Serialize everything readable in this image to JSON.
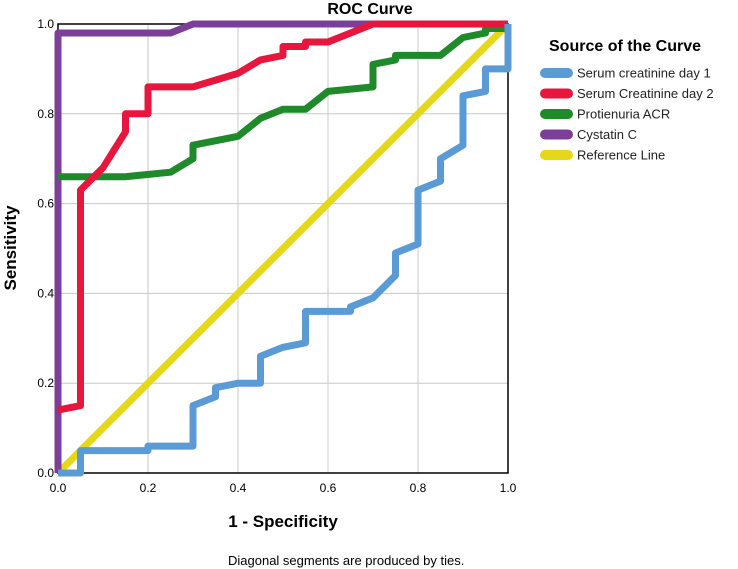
{
  "chart_data": {
    "type": "line",
    "title": "ROC Curve",
    "xlabel": "1 - Specificity",
    "ylabel": "Sensitivity",
    "xlim": [
      0,
      1
    ],
    "ylim": [
      0,
      1
    ],
    "x_ticks": [
      "0.0",
      "0.2",
      "0.4",
      "0.6",
      "0.8",
      "1.0"
    ],
    "y_ticks": [
      "0.0",
      "0.2",
      "0.4",
      "0.6",
      "0.8",
      "1.0"
    ],
    "grid": true,
    "legend_title": "Source of the Curve",
    "legend_position": "right",
    "footnote": "Diagonal segments are produced by ties.",
    "series": [
      {
        "name": "Serum creatinine day 1",
        "color": "#5b9bd5",
        "points": [
          [
            0,
            0
          ],
          [
            0.05,
            0
          ],
          [
            0.05,
            0.05
          ],
          [
            0.2,
            0.05
          ],
          [
            0.2,
            0.06
          ],
          [
            0.3,
            0.06
          ],
          [
            0.3,
            0.15
          ],
          [
            0.35,
            0.17
          ],
          [
            0.35,
            0.19
          ],
          [
            0.4,
            0.2
          ],
          [
            0.45,
            0.2
          ],
          [
            0.45,
            0.26
          ],
          [
            0.5,
            0.28
          ],
          [
            0.55,
            0.29
          ],
          [
            0.55,
            0.36
          ],
          [
            0.65,
            0.36
          ],
          [
            0.65,
            0.37
          ],
          [
            0.7,
            0.39
          ],
          [
            0.75,
            0.44
          ],
          [
            0.75,
            0.49
          ],
          [
            0.8,
            0.51
          ],
          [
            0.8,
            0.63
          ],
          [
            0.85,
            0.65
          ],
          [
            0.85,
            0.7
          ],
          [
            0.9,
            0.73
          ],
          [
            0.9,
            0.84
          ],
          [
            0.95,
            0.85
          ],
          [
            0.95,
            0.9
          ],
          [
            1,
            0.9
          ],
          [
            1,
            1
          ]
        ]
      },
      {
        "name": "Serum Creatinine day 2",
        "color": "#e8153c",
        "points": [
          [
            0,
            0.14
          ],
          [
            0.05,
            0.15
          ],
          [
            0.05,
            0.63
          ],
          [
            0.1,
            0.68
          ],
          [
            0.15,
            0.76
          ],
          [
            0.15,
            0.8
          ],
          [
            0.2,
            0.8
          ],
          [
            0.2,
            0.86
          ],
          [
            0.3,
            0.86
          ],
          [
            0.4,
            0.89
          ],
          [
            0.45,
            0.92
          ],
          [
            0.5,
            0.93
          ],
          [
            0.5,
            0.95
          ],
          [
            0.55,
            0.95
          ],
          [
            0.55,
            0.96
          ],
          [
            0.6,
            0.96
          ],
          [
            0.7,
            1
          ],
          [
            1,
            1
          ]
        ]
      },
      {
        "name": "Protienuria ACR",
        "color": "#1f8a2a",
        "points": [
          [
            0,
            0.66
          ],
          [
            0.15,
            0.66
          ],
          [
            0.25,
            0.67
          ],
          [
            0.3,
            0.7
          ],
          [
            0.3,
            0.73
          ],
          [
            0.4,
            0.75
          ],
          [
            0.45,
            0.79
          ],
          [
            0.5,
            0.81
          ],
          [
            0.55,
            0.81
          ],
          [
            0.6,
            0.85
          ],
          [
            0.7,
            0.86
          ],
          [
            0.7,
            0.91
          ],
          [
            0.75,
            0.92
          ],
          [
            0.75,
            0.93
          ],
          [
            0.85,
            0.93
          ],
          [
            0.9,
            0.97
          ],
          [
            0.95,
            0.98
          ],
          [
            0.95,
            0.99
          ],
          [
            1,
            0.99
          ],
          [
            1,
            1
          ]
        ]
      },
      {
        "name": "Cystatin C",
        "color": "#7c3f98",
        "points": [
          [
            0,
            0
          ],
          [
            0,
            0.98
          ],
          [
            0.25,
            0.98
          ],
          [
            0.3,
            1
          ],
          [
            1,
            1
          ]
        ]
      },
      {
        "name": "Reference Line",
        "color": "#e5d81b",
        "points": [
          [
            0,
            0
          ],
          [
            1,
            1
          ]
        ]
      }
    ]
  }
}
